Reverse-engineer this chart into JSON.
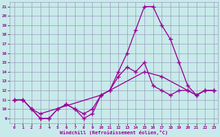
{
  "xlabel": "Windchill (Refroidissement éolien,°C)",
  "xlim": [
    -0.5,
    23.5
  ],
  "ylim": [
    8.5,
    21.5
  ],
  "yticks": [
    9,
    10,
    11,
    12,
    13,
    14,
    15,
    16,
    17,
    18,
    19,
    20,
    21
  ],
  "xticks": [
    0,
    1,
    2,
    3,
    4,
    5,
    6,
    7,
    8,
    9,
    10,
    11,
    12,
    13,
    14,
    15,
    16,
    17,
    18,
    19,
    20,
    21,
    22,
    23
  ],
  "bg_color": "#c8eaea",
  "grid_color": "#9999bb",
  "line_color": "#990099",
  "line_width": 1.0,
  "marker": "+",
  "marker_size": 4,
  "curve1_x": [
    0,
    1,
    2,
    3,
    4,
    5,
    6,
    7,
    8,
    9,
    10,
    11,
    12,
    13,
    14,
    15,
    16,
    17,
    18,
    19,
    20,
    21,
    22,
    23
  ],
  "curve1_y": [
    11.0,
    11.0,
    10.0,
    9.0,
    9.0,
    10.0,
    10.5,
    10.0,
    9.0,
    9.5,
    11.5,
    12.0,
    14.0,
    16.0,
    18.5,
    21.0,
    21.0,
    19.0,
    17.5,
    15.0,
    12.5,
    11.5,
    12.0,
    12.0
  ],
  "curve2_x": [
    0,
    1,
    2,
    3,
    4,
    5,
    6,
    7,
    8,
    9,
    10,
    11,
    12,
    13,
    14,
    15,
    16,
    17,
    18,
    19,
    20,
    21,
    22,
    23
  ],
  "curve2_y": [
    11.0,
    11.0,
    10.0,
    9.0,
    9.0,
    10.0,
    10.5,
    10.0,
    9.5,
    10.0,
    11.5,
    12.0,
    13.5,
    14.5,
    14.0,
    15.0,
    12.5,
    12.0,
    11.5,
    12.0,
    12.0,
    11.5,
    12.0,
    12.0
  ],
  "curve3_x": [
    0,
    1,
    2,
    3,
    10,
    15,
    17,
    20,
    21,
    22,
    23
  ],
  "curve3_y": [
    11.0,
    11.0,
    10.0,
    9.5,
    11.5,
    14.0,
    13.5,
    12.0,
    11.5,
    12.0,
    12.0
  ]
}
